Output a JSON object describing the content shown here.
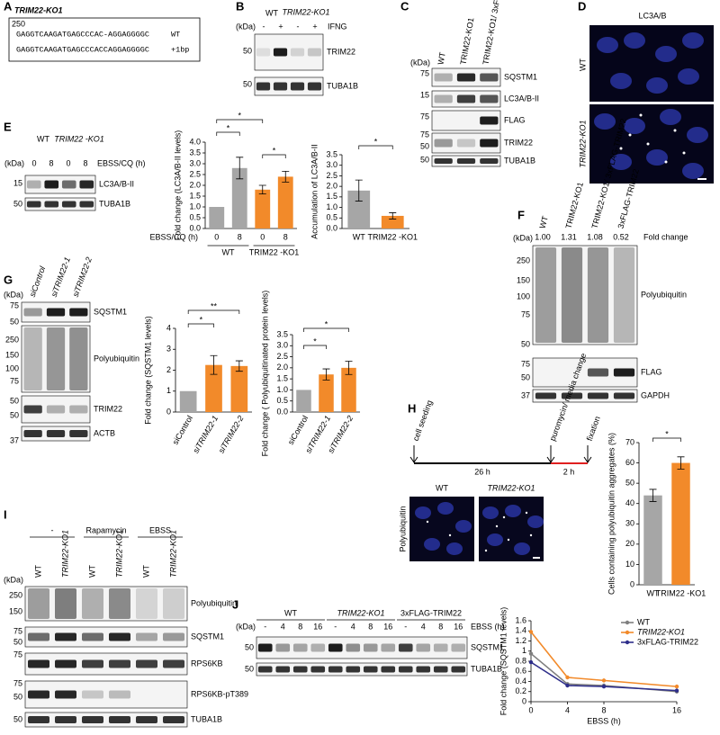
{
  "panels": {
    "A": {
      "letter": "A",
      "title": "TRIM22-KO1",
      "pos": "250",
      "seq": [
        "GAGGTCAAGATGAGCCCAC-AGGAGGGGC",
        "GAGGTCAAGATGAGCCCACCAGGAGGGGC"
      ],
      "seq_labels": [
        "WT",
        "+1bp"
      ]
    },
    "B": {
      "letter": "B",
      "kda": "(kDa)",
      "lanes": [
        "WT",
        "TRIM22-KO1"
      ],
      "treatment": "IFNG",
      "signs": [
        "-",
        "+",
        "-",
        "+"
      ],
      "markers": [
        50,
        50
      ],
      "bands": [
        "TRIM22",
        "TUBA1B"
      ]
    },
    "C": {
      "letter": "C",
      "kda": "(kDa)",
      "lanes": [
        "WT",
        "TRIM22-KO1",
        "TRIM22-KO1/ 3xFLAG-TRIM22"
      ],
      "markers": [
        75,
        15,
        75,
        75,
        50,
        50
      ],
      "bands": [
        "SQSTM1",
        "LC3A/B-II",
        "FLAG",
        "TRIM22",
        "TUBA1B"
      ]
    },
    "D": {
      "letter": "D",
      "title": "LC3A/B",
      "rows": [
        "WT",
        "TRIM22-KO1"
      ]
    },
    "E": {
      "letter": "E",
      "kda": "(kDa)",
      "lanes": [
        "WT",
        "TRIM22 -KO1"
      ],
      "treatment": "EBSS/CQ (h)",
      "times": [
        "0",
        "8",
        "0",
        "8"
      ],
      "markers": [
        15,
        50
      ],
      "bands": [
        "LC3A/B-II",
        "TUBA1B"
      ]
    },
    "F": {
      "letter": "F",
      "kda": "(kDa)",
      "lanes": [
        "WT",
        "TRIM22-KO1",
        "TRIM22-KO1/ 3xFLAG-TRIM22",
        "3xFLAG-TRIM22"
      ],
      "fold_label": "Fold change",
      "folds": [
        "1.00",
        "1.31",
        "1.08",
        "0.52"
      ],
      "markers": [
        250,
        150,
        100,
        75,
        50,
        75,
        50,
        37
      ],
      "bands": [
        "Polyubiquitin",
        "FLAG",
        "GAPDH"
      ]
    },
    "G": {
      "letter": "G",
      "kda": "(kDa)",
      "lanes": [
        "siControl",
        "siTRIM22-1",
        "siTRIM22-2"
      ],
      "markers": [
        75,
        50,
        250,
        150,
        100,
        75,
        50,
        50,
        37
      ],
      "bands": [
        "SQSTM1",
        "Polyubiquitin",
        "TRIM22",
        "ACTB"
      ]
    },
    "H": {
      "letter": "H",
      "timeline": [
        "cell seeding",
        "puromycin/ media change",
        "fixation"
      ],
      "durations": [
        "26 h",
        "2 h"
      ],
      "images": [
        "WT",
        "TRIM22-KO1"
      ],
      "stain": "Polyubiquitin"
    },
    "I": {
      "letter": "I",
      "kda": "(kDa)",
      "groups": [
        "-",
        "Rapamycin",
        "EBSS"
      ],
      "lanes": [
        "WT",
        "TRIM22-KO1",
        "WT",
        "TRIM22-KO1",
        "WT",
        "TRIM22-KO1"
      ],
      "markers": [
        250,
        150,
        75,
        50,
        75,
        75,
        50,
        50
      ],
      "bands": [
        "Polyubiquitin",
        "SQSTM1",
        "RPS6KB",
        "RPS6KB-pT389",
        "TUBA1B"
      ]
    },
    "J": {
      "letter": "J",
      "kda": "(kDa)",
      "groups": [
        "WT",
        "TRIM22-KO1",
        "3xFLAG-TRIM22"
      ],
      "treatment": "EBSS (h)",
      "times": [
        "-",
        "4",
        "8",
        "16",
        "-",
        "4",
        "8",
        "16",
        "-",
        "4",
        "8",
        "16"
      ],
      "markers": [
        50,
        50
      ],
      "bands": [
        "SQSTM1",
        "TUBA1B"
      ]
    }
  },
  "chart_data": [
    {
      "type": "bar",
      "ylabel": "Fold change (LC3A/B-II levels)",
      "categories": [
        "0",
        "8",
        "0",
        "8"
      ],
      "groups": [
        "WT",
        "TRIM22 -KO1"
      ],
      "xlabel": "EBSS/CQ (h)",
      "values": [
        1.0,
        2.8,
        1.8,
        2.4
      ],
      "errors": [
        0,
        0.5,
        0.2,
        0.25
      ],
      "colors": [
        "#a6a6a6",
        "#a6a6a6",
        "#f28a2a",
        "#f28a2a"
      ],
      "ylim": [
        0,
        4
      ],
      "yticks": [
        {
          "value": 0,
          "label": "0.0"
        },
        {
          "value": 0.5,
          "label": "0.5"
        },
        {
          "value": 1,
          "label": "1.0"
        },
        {
          "value": 1.5,
          "label": "1.5"
        },
        {
          "value": 2,
          "label": "2.0"
        },
        {
          "value": 2.5,
          "label": "2.5"
        },
        {
          "value": 3,
          "label": "3.0"
        },
        {
          "value": 3.5,
          "label": "3.5"
        },
        {
          "value": 4,
          "label": "4.0"
        }
      ],
      "annotations": [
        "*",
        "*",
        "*"
      ]
    },
    {
      "type": "bar",
      "ylabel": "Accumulation of LC3A/B-II",
      "categories": [
        "WT",
        "TRIM22 -KO1"
      ],
      "values": [
        1.8,
        0.6
      ],
      "errors": [
        0.5,
        0.15
      ],
      "colors": [
        "#a6a6a6",
        "#f28a2a"
      ],
      "ylim": [
        0,
        3.5
      ],
      "yticks": [
        {
          "value": 0,
          "label": "0.0"
        },
        {
          "value": 0.5,
          "label": "0.5"
        },
        {
          "value": 1,
          "label": "1.0"
        },
        {
          "value": 1.5,
          "label": "1.5"
        },
        {
          "value": 2,
          "label": "2.0"
        },
        {
          "value": 2.5,
          "label": "2.5"
        },
        {
          "value": 3,
          "label": "3.0"
        },
        {
          "value": 3.5,
          "label": "3.5"
        }
      ],
      "annotations": [
        "*"
      ]
    },
    {
      "type": "bar",
      "ylabel": "Fold change (SQSTM1 levels)",
      "categories": [
        "siControl",
        "siTRIM22-1",
        "siTRIM22-2"
      ],
      "values": [
        1.0,
        2.25,
        2.2
      ],
      "errors": [
        0,
        0.45,
        0.25
      ],
      "colors": [
        "#a6a6a6",
        "#f28a2a",
        "#f28a2a"
      ],
      "ylim": [
        0,
        4
      ],
      "yticks": [
        0,
        1,
        2,
        3,
        4
      ],
      "annotations": [
        "**",
        "*"
      ]
    },
    {
      "type": "bar",
      "ylabel": "Fold change ( Polyubiquitinated protein levels)",
      "categories": [
        "siControl",
        "siTRIM22-1",
        "siTRIM22-2"
      ],
      "values": [
        1.0,
        1.7,
        2.0
      ],
      "errors": [
        0,
        0.25,
        0.3
      ],
      "colors": [
        "#a6a6a6",
        "#f28a2a",
        "#f28a2a"
      ],
      "ylim": [
        0,
        3.5
      ],
      "yticks": [
        {
          "value": 0,
          "label": "0.0"
        },
        {
          "value": 0.5,
          "label": "0.5"
        },
        {
          "value": 1,
          "label": "1.0"
        },
        {
          "value": 1.5,
          "label": "1.5"
        },
        {
          "value": 2,
          "label": "2.0"
        },
        {
          "value": 2.5,
          "label": "2.5"
        },
        {
          "value": 3,
          "label": "3.0"
        },
        {
          "value": 3.5,
          "label": "3.5"
        }
      ],
      "annotations": [
        "*",
        "*"
      ]
    },
    {
      "type": "bar",
      "ylabel": "Cells containing polyubiquitin aggregates (%)",
      "categories": [
        "WT",
        "TRIM22 -KO1"
      ],
      "values": [
        44,
        60
      ],
      "errors": [
        3,
        3
      ],
      "colors": [
        "#a6a6a6",
        "#f28a2a"
      ],
      "ylim": [
        0,
        70
      ],
      "yticks": [
        0,
        10,
        20,
        30,
        40,
        50,
        60,
        70
      ],
      "annotations": [
        "*"
      ]
    },
    {
      "type": "line",
      "ylabel": "Fold change (SQSTM1 levels)",
      "xlabel": "EBSS (h)",
      "x": [
        0,
        4,
        8,
        16
      ],
      "series": [
        {
          "name": "WT",
          "color": "#7f7f7f",
          "values": [
            0.95,
            0.35,
            0.32,
            0.2
          ]
        },
        {
          "name": "TRIM22-KO1",
          "color": "#f28a2a",
          "values": [
            1.38,
            0.48,
            0.42,
            0.3
          ]
        },
        {
          "name": "3xFLAG-TRIM22",
          "color": "#2e2e8a",
          "values": [
            0.78,
            0.32,
            0.3,
            0.22
          ]
        }
      ],
      "xlim": [
        0,
        16
      ],
      "xticks": [
        0,
        4,
        8,
        16
      ],
      "ylim": [
        0,
        1.6
      ],
      "yticks": [
        0,
        0.2,
        0.4,
        0.6,
        0.8,
        1,
        1.2,
        1.4,
        1.6
      ]
    }
  ]
}
